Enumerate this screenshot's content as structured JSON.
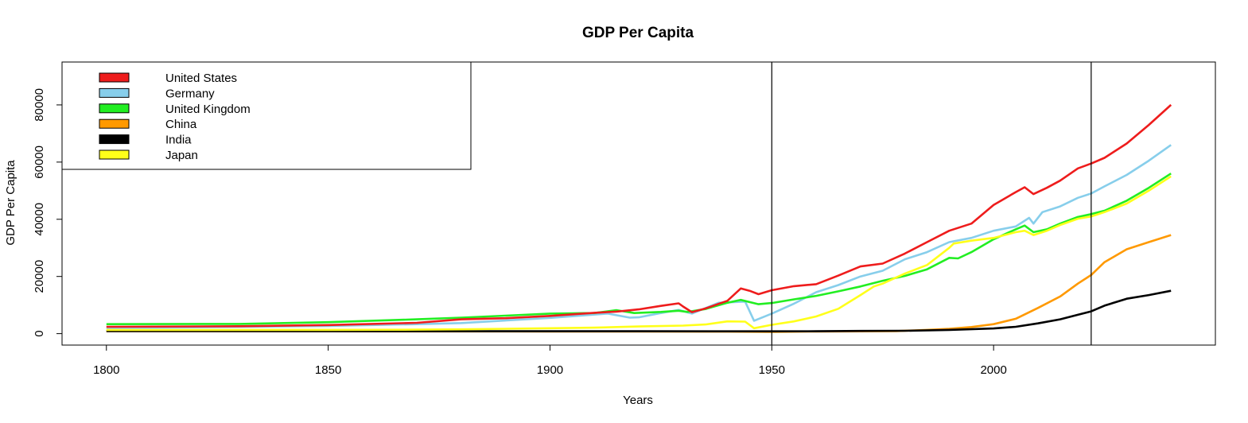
{
  "chart_data": {
    "type": "line",
    "title": "GDP Per Capita",
    "xlabel": "Years",
    "ylabel": "GDP Per Capita",
    "xlim": [
      1790,
      2050
    ],
    "ylim": [
      -4000,
      95000
    ],
    "x_ticks": [
      1800,
      1850,
      1900,
      1950,
      2000
    ],
    "x_tick_labels": [
      "1800",
      "1850",
      "1900",
      "1950",
      "2000"
    ],
    "y_ticks": [
      0,
      20000,
      40000,
      60000,
      80000
    ],
    "y_tick_labels": [
      "0",
      "20000",
      "40000",
      "60000",
      "80000"
    ],
    "grid": false,
    "legend_position": "top-left",
    "vertical_lines": [
      1950,
      2022
    ],
    "series": [
      {
        "name": "United States",
        "color": "#ee1c1c",
        "points": [
          [
            1800,
            2400
          ],
          [
            1830,
            2600
          ],
          [
            1850,
            3000
          ],
          [
            1870,
            3800
          ],
          [
            1880,
            5000
          ],
          [
            1890,
            5400
          ],
          [
            1900,
            6200
          ],
          [
            1910,
            7300
          ],
          [
            1915,
            7700
          ],
          [
            1920,
            8500
          ],
          [
            1925,
            9700
          ],
          [
            1929,
            10600
          ],
          [
            1930,
            9500
          ],
          [
            1932,
            7500
          ],
          [
            1935,
            8800
          ],
          [
            1940,
            11500
          ],
          [
            1943,
            15800
          ],
          [
            1945,
            15000
          ],
          [
            1947,
            13800
          ],
          [
            1950,
            15200
          ],
          [
            1955,
            16600
          ],
          [
            1960,
            17300
          ],
          [
            1965,
            20300
          ],
          [
            1970,
            23500
          ],
          [
            1975,
            24500
          ],
          [
            1980,
            28000
          ],
          [
            1985,
            32000
          ],
          [
            1990,
            36000
          ],
          [
            1995,
            38500
          ],
          [
            2000,
            45000
          ],
          [
            2005,
            49500
          ],
          [
            2007,
            51200
          ],
          [
            2009,
            48800
          ],
          [
            2012,
            51000
          ],
          [
            2015,
            53500
          ],
          [
            2019,
            57800
          ],
          [
            2022,
            59500
          ],
          [
            2025,
            61500
          ],
          [
            2030,
            66500
          ],
          [
            2035,
            73000
          ],
          [
            2040,
            80000
          ]
        ]
      },
      {
        "name": "Germany",
        "color": "#87ceeb",
        "points": [
          [
            1800,
            1900
          ],
          [
            1850,
            2700
          ],
          [
            1870,
            3300
          ],
          [
            1880,
            3700
          ],
          [
            1900,
            5500
          ],
          [
            1913,
            7000
          ],
          [
            1918,
            5600
          ],
          [
            1920,
            5700
          ],
          [
            1925,
            7200
          ],
          [
            1929,
            8300
          ],
          [
            1932,
            7000
          ],
          [
            1938,
            10800
          ],
          [
            1944,
            11200
          ],
          [
            1946,
            4500
          ],
          [
            1950,
            7000
          ],
          [
            1955,
            10500
          ],
          [
            1960,
            14500
          ],
          [
            1965,
            17000
          ],
          [
            1970,
            20000
          ],
          [
            1975,
            22000
          ],
          [
            1980,
            26000
          ],
          [
            1985,
            28500
          ],
          [
            1990,
            32000
          ],
          [
            1995,
            33500
          ],
          [
            2000,
            36000
          ],
          [
            2005,
            37500
          ],
          [
            2008,
            40500
          ],
          [
            2009,
            38500
          ],
          [
            2011,
            42500
          ],
          [
            2015,
            44500
          ],
          [
            2019,
            47500
          ],
          [
            2022,
            49000
          ],
          [
            2025,
            51500
          ],
          [
            2030,
            55500
          ],
          [
            2035,
            60500
          ],
          [
            2040,
            66000
          ]
        ]
      },
      {
        "name": "United Kingdom",
        "color": "#22ee22",
        "points": [
          [
            1800,
            3300
          ],
          [
            1830,
            3400
          ],
          [
            1850,
            4000
          ],
          [
            1870,
            5000
          ],
          [
            1880,
            5600
          ],
          [
            1890,
            6300
          ],
          [
            1900,
            7000
          ],
          [
            1910,
            7200
          ],
          [
            1915,
            8200
          ],
          [
            1919,
            7200
          ],
          [
            1925,
            7600
          ],
          [
            1929,
            8000
          ],
          [
            1931,
            7600
          ],
          [
            1935,
            8600
          ],
          [
            1940,
            10800
          ],
          [
            1943,
            11800
          ],
          [
            1947,
            10300
          ],
          [
            1950,
            10700
          ],
          [
            1955,
            12000
          ],
          [
            1960,
            13200
          ],
          [
            1965,
            14800
          ],
          [
            1970,
            16500
          ],
          [
            1975,
            18500
          ],
          [
            1980,
            20200
          ],
          [
            1985,
            22500
          ],
          [
            1990,
            26500
          ],
          [
            1992,
            26300
          ],
          [
            1995,
            28500
          ],
          [
            2000,
            33000
          ],
          [
            2005,
            36500
          ],
          [
            2007,
            37800
          ],
          [
            2009,
            35500
          ],
          [
            2012,
            36500
          ],
          [
            2015,
            38500
          ],
          [
            2019,
            40800
          ],
          [
            2022,
            41800
          ],
          [
            2025,
            43000
          ],
          [
            2030,
            46500
          ],
          [
            2035,
            51000
          ],
          [
            2040,
            56000
          ]
        ]
      },
      {
        "name": "China",
        "color": "#ff9900",
        "points": [
          [
            1800,
            900
          ],
          [
            1850,
            800
          ],
          [
            1900,
            750
          ],
          [
            1920,
            750
          ],
          [
            1940,
            700
          ],
          [
            1950,
            600
          ],
          [
            1960,
            750
          ],
          [
            1970,
            800
          ],
          [
            1978,
            900
          ],
          [
            1985,
            1300
          ],
          [
            1990,
            1700
          ],
          [
            1995,
            2300
          ],
          [
            2000,
            3300
          ],
          [
            2005,
            5200
          ],
          [
            2010,
            9000
          ],
          [
            2015,
            13000
          ],
          [
            2019,
            17500
          ],
          [
            2022,
            20500
          ],
          [
            2025,
            25000
          ],
          [
            2030,
            29500
          ],
          [
            2035,
            32000
          ],
          [
            2040,
            34500
          ]
        ]
      },
      {
        "name": "India",
        "color": "#000000",
        "points": [
          [
            1800,
            900
          ],
          [
            1850,
            850
          ],
          [
            1900,
            850
          ],
          [
            1920,
            850
          ],
          [
            1940,
            800
          ],
          [
            1950,
            800
          ],
          [
            1960,
            850
          ],
          [
            1970,
            950
          ],
          [
            1980,
            1000
          ],
          [
            1990,
            1300
          ],
          [
            2000,
            1800
          ],
          [
            2005,
            2400
          ],
          [
            2010,
            3600
          ],
          [
            2015,
            5000
          ],
          [
            2019,
            6600
          ],
          [
            2022,
            7800
          ],
          [
            2025,
            9800
          ],
          [
            2030,
            12200
          ],
          [
            2035,
            13500
          ],
          [
            2040,
            15000
          ]
        ]
      },
      {
        "name": "Japan",
        "color": "#ffff1a",
        "points": [
          [
            1800,
            1300
          ],
          [
            1850,
            1300
          ],
          [
            1870,
            1400
          ],
          [
            1880,
            1500
          ],
          [
            1900,
            1900
          ],
          [
            1910,
            2100
          ],
          [
            1920,
            2500
          ],
          [
            1930,
            2800
          ],
          [
            1935,
            3200
          ],
          [
            1940,
            4300
          ],
          [
            1944,
            4200
          ],
          [
            1946,
            1900
          ],
          [
            1950,
            3100
          ],
          [
            1955,
            4300
          ],
          [
            1960,
            6000
          ],
          [
            1965,
            8700
          ],
          [
            1970,
            13500
          ],
          [
            1973,
            16500
          ],
          [
            1975,
            17500
          ],
          [
            1980,
            21000
          ],
          [
            1985,
            24000
          ],
          [
            1990,
            30000
          ],
          [
            1991,
            31500
          ],
          [
            1995,
            32500
          ],
          [
            2000,
            33500
          ],
          [
            2005,
            35500
          ],
          [
            2007,
            36000
          ],
          [
            2009,
            34500
          ],
          [
            2012,
            36000
          ],
          [
            2015,
            38000
          ],
          [
            2019,
            40200
          ],
          [
            2022,
            41000
          ],
          [
            2025,
            42500
          ],
          [
            2030,
            45500
          ],
          [
            2035,
            50000
          ],
          [
            2040,
            55000
          ]
        ]
      }
    ]
  }
}
